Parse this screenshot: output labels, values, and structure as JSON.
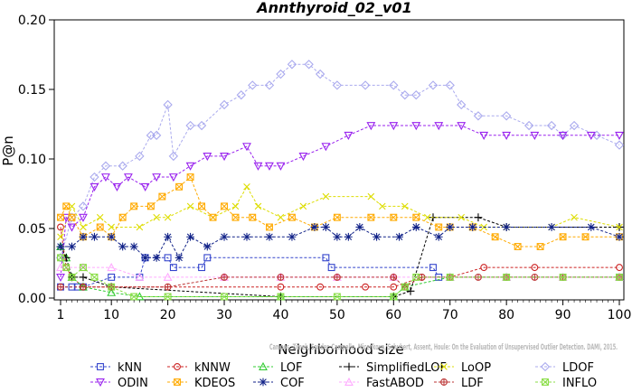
{
  "chart_data": {
    "type": "line",
    "title": "Annthyroid_02_v01",
    "xlabel": "Neighborhood size",
    "ylabel": "P@n",
    "xlim": [
      1,
      100
    ],
    "ylim": [
      0,
      0.2
    ],
    "x_ticks": [
      1,
      10,
      20,
      30,
      40,
      50,
      60,
      70,
      80,
      90,
      100
    ],
    "y_ticks": [
      0.0,
      0.05,
      0.1,
      0.15,
      0.2
    ],
    "y_tick_labels": [
      "0.00",
      "0.05",
      "0.10",
      "0.15",
      "0.20"
    ],
    "grid": false,
    "legend_position": "bottom",
    "credit": "Campos, Zimek, Sander, Campello, Micenkova, Schubert, Assent, Houle: On the Evaluation of Unsupervised Outlier Detection. DAMI, 2015.",
    "series": [
      {
        "name": "kNN",
        "color": "#3344cc",
        "marker": "square",
        "points": [
          [
            1,
            0.008
          ],
          [
            3,
            0.008
          ],
          [
            4,
            0.008
          ],
          [
            5,
            0.008
          ],
          [
            10,
            0.015
          ],
          [
            15,
            0.015
          ],
          [
            16,
            0.029
          ],
          [
            20,
            0.029
          ],
          [
            21,
            0.022
          ],
          [
            26,
            0.022
          ],
          [
            27,
            0.029
          ],
          [
            48,
            0.029
          ],
          [
            49,
            0.022
          ],
          [
            67,
            0.022
          ],
          [
            68,
            0.015
          ],
          [
            100,
            0.015
          ]
        ]
      },
      {
        "name": "kNNW",
        "color": "#cc2222",
        "marker": "circle",
        "points": [
          [
            1,
            0.051
          ],
          [
            2,
            0.022
          ],
          [
            3,
            0.015
          ],
          [
            5,
            0.008
          ],
          [
            10,
            0.008
          ],
          [
            40,
            0.008
          ],
          [
            47,
            0.008
          ],
          [
            55,
            0.008
          ],
          [
            60,
            0.008
          ],
          [
            65,
            0.015
          ],
          [
            70,
            0.015
          ],
          [
            76,
            0.022
          ],
          [
            85,
            0.022
          ],
          [
            100,
            0.022
          ]
        ]
      },
      {
        "name": "LOF",
        "color": "#33cc33",
        "marker": "triangle-up",
        "points": [
          [
            1,
            0.037
          ],
          [
            2,
            0.029
          ],
          [
            3,
            0.015
          ],
          [
            5,
            0.008
          ],
          [
            10,
            0.004
          ],
          [
            15,
            0.001
          ],
          [
            40,
            0.001
          ],
          [
            60,
            0.001
          ],
          [
            62,
            0.008
          ],
          [
            70,
            0.015
          ],
          [
            80,
            0.015
          ],
          [
            100,
            0.015
          ]
        ]
      },
      {
        "name": "SimplifiedLOF",
        "color": "#000000",
        "marker": "plus",
        "points": [
          [
            1,
            0.037
          ],
          [
            2,
            0.029
          ],
          [
            3,
            0.015
          ],
          [
            5,
            0.015
          ],
          [
            10,
            0.008
          ],
          [
            40,
            0.001
          ],
          [
            60,
            0.001
          ],
          [
            63,
            0.005
          ],
          [
            67,
            0.058
          ],
          [
            75,
            0.058
          ],
          [
            80,
            0.051
          ],
          [
            100,
            0.051
          ]
        ]
      },
      {
        "name": "LoOP",
        "color": "#dddd00",
        "marker": "x",
        "points": [
          [
            1,
            0.044
          ],
          [
            3,
            0.066
          ],
          [
            5,
            0.051
          ],
          [
            8,
            0.058
          ],
          [
            10,
            0.051
          ],
          [
            15,
            0.051
          ],
          [
            18,
            0.058
          ],
          [
            20,
            0.058
          ],
          [
            24,
            0.066
          ],
          [
            28,
            0.058
          ],
          [
            32,
            0.066
          ],
          [
            34,
            0.08
          ],
          [
            36,
            0.066
          ],
          [
            40,
            0.058
          ],
          [
            44,
            0.066
          ],
          [
            48,
            0.073
          ],
          [
            56,
            0.073
          ],
          [
            58,
            0.066
          ],
          [
            62,
            0.066
          ],
          [
            66,
            0.058
          ],
          [
            72,
            0.058
          ],
          [
            76,
            0.051
          ],
          [
            80,
            0.051
          ],
          [
            88,
            0.051
          ],
          [
            92,
            0.058
          ],
          [
            100,
            0.051
          ]
        ]
      },
      {
        "name": "LDOF",
        "color": "#aaaaee",
        "marker": "diamond",
        "points": [
          [
            1,
            0.029
          ],
          [
            3,
            0.058
          ],
          [
            5,
            0.066
          ],
          [
            7,
            0.087
          ],
          [
            9,
            0.095
          ],
          [
            12,
            0.095
          ],
          [
            15,
            0.102
          ],
          [
            17,
            0.117
          ],
          [
            18,
            0.117
          ],
          [
            20,
            0.139
          ],
          [
            21,
            0.102
          ],
          [
            24,
            0.124
          ],
          [
            26,
            0.124
          ],
          [
            30,
            0.139
          ],
          [
            33,
            0.146
          ],
          [
            35,
            0.153
          ],
          [
            38,
            0.153
          ],
          [
            40,
            0.161
          ],
          [
            42,
            0.168
          ],
          [
            45,
            0.168
          ],
          [
            47,
            0.161
          ],
          [
            50,
            0.153
          ],
          [
            55,
            0.153
          ],
          [
            60,
            0.153
          ],
          [
            62,
            0.146
          ],
          [
            64,
            0.146
          ],
          [
            67,
            0.153
          ],
          [
            70,
            0.153
          ],
          [
            72,
            0.139
          ],
          [
            75,
            0.131
          ],
          [
            80,
            0.131
          ],
          [
            84,
            0.124
          ],
          [
            88,
            0.124
          ],
          [
            90,
            0.117
          ],
          [
            92,
            0.124
          ],
          [
            96,
            0.117
          ],
          [
            100,
            0.11
          ]
        ]
      },
      {
        "name": "ODIN",
        "color": "#9922ee",
        "marker": "triangle-down",
        "points": [
          [
            1,
            0.015
          ],
          [
            2,
            0.058
          ],
          [
            3,
            0.051
          ],
          [
            5,
            0.058
          ],
          [
            7,
            0.08
          ],
          [
            9,
            0.087
          ],
          [
            11,
            0.08
          ],
          [
            13,
            0.087
          ],
          [
            16,
            0.08
          ],
          [
            18,
            0.087
          ],
          [
            21,
            0.087
          ],
          [
            24,
            0.095
          ],
          [
            27,
            0.102
          ],
          [
            30,
            0.102
          ],
          [
            34,
            0.109
          ],
          [
            36,
            0.095
          ],
          [
            38,
            0.095
          ],
          [
            40,
            0.095
          ],
          [
            44,
            0.102
          ],
          [
            48,
            0.109
          ],
          [
            52,
            0.117
          ],
          [
            56,
            0.124
          ],
          [
            60,
            0.124
          ],
          [
            64,
            0.124
          ],
          [
            68,
            0.124
          ],
          [
            72,
            0.124
          ],
          [
            76,
            0.117
          ],
          [
            80,
            0.117
          ],
          [
            85,
            0.117
          ],
          [
            90,
            0.117
          ],
          [
            95,
            0.117
          ],
          [
            100,
            0.117
          ]
        ]
      },
      {
        "name": "KDEOS",
        "color": "#ffaa00",
        "marker": "square-x",
        "points": [
          [
            1,
            0.058
          ],
          [
            2,
            0.066
          ],
          [
            3,
            0.058
          ],
          [
            5,
            0.044
          ],
          [
            8,
            0.051
          ],
          [
            10,
            0.044
          ],
          [
            12,
            0.058
          ],
          [
            14,
            0.066
          ],
          [
            17,
            0.066
          ],
          [
            19,
            0.073
          ],
          [
            22,
            0.08
          ],
          [
            24,
            0.087
          ],
          [
            26,
            0.066
          ],
          [
            28,
            0.058
          ],
          [
            30,
            0.066
          ],
          [
            32,
            0.058
          ],
          [
            35,
            0.058
          ],
          [
            38,
            0.051
          ],
          [
            42,
            0.058
          ],
          [
            46,
            0.051
          ],
          [
            50,
            0.058
          ],
          [
            56,
            0.058
          ],
          [
            60,
            0.058
          ],
          [
            64,
            0.058
          ],
          [
            68,
            0.051
          ],
          [
            70,
            0.051
          ],
          [
            74,
            0.051
          ],
          [
            78,
            0.044
          ],
          [
            82,
            0.037
          ],
          [
            86,
            0.037
          ],
          [
            90,
            0.044
          ],
          [
            94,
            0.044
          ],
          [
            100,
            0.044
          ]
        ]
      },
      {
        "name": "COF",
        "color": "#112288",
        "marker": "asterisk",
        "points": [
          [
            1,
            0.037
          ],
          [
            3,
            0.037
          ],
          [
            5,
            0.044
          ],
          [
            7,
            0.044
          ],
          [
            10,
            0.044
          ],
          [
            12,
            0.037
          ],
          [
            14,
            0.037
          ],
          [
            16,
            0.029
          ],
          [
            18,
            0.029
          ],
          [
            20,
            0.044
          ],
          [
            22,
            0.029
          ],
          [
            24,
            0.044
          ],
          [
            27,
            0.037
          ],
          [
            30,
            0.044
          ],
          [
            34,
            0.044
          ],
          [
            38,
            0.044
          ],
          [
            42,
            0.044
          ],
          [
            46,
            0.051
          ],
          [
            48,
            0.051
          ],
          [
            50,
            0.044
          ],
          [
            52,
            0.044
          ],
          [
            54,
            0.051
          ],
          [
            57,
            0.044
          ],
          [
            61,
            0.044
          ],
          [
            64,
            0.051
          ],
          [
            68,
            0.044
          ],
          [
            70,
            0.051
          ],
          [
            74,
            0.051
          ],
          [
            80,
            0.051
          ],
          [
            88,
            0.051
          ],
          [
            95,
            0.051
          ],
          [
            100,
            0.044
          ]
        ]
      },
      {
        "name": "FastABOD",
        "color": "#ffaaff",
        "marker": "triangle-up",
        "points": [
          [
            1,
            0.022
          ],
          [
            5,
            0.022
          ],
          [
            10,
            0.022
          ],
          [
            15,
            0.015
          ],
          [
            20,
            0.015
          ],
          [
            30,
            0.015
          ],
          [
            40,
            0.015
          ],
          [
            50,
            0.015
          ],
          [
            60,
            0.015
          ],
          [
            70,
            0.015
          ],
          [
            80,
            0.015
          ],
          [
            90,
            0.015
          ],
          [
            100,
            0.015
          ]
        ]
      },
      {
        "name": "LDF",
        "color": "#bb3333",
        "marker": "circle-plus",
        "points": [
          [
            1,
            0.008
          ],
          [
            5,
            0.008
          ],
          [
            10,
            0.008
          ],
          [
            20,
            0.008
          ],
          [
            30,
            0.015
          ],
          [
            40,
            0.015
          ],
          [
            50,
            0.015
          ],
          [
            60,
            0.015
          ],
          [
            62,
            0.008
          ],
          [
            65,
            0.015
          ],
          [
            70,
            0.015
          ],
          [
            75,
            0.015
          ],
          [
            80,
            0.015
          ],
          [
            85,
            0.015
          ],
          [
            90,
            0.015
          ],
          [
            100,
            0.015
          ]
        ]
      },
      {
        "name": "INFLO",
        "color": "#88dd44",
        "marker": "square-x",
        "points": [
          [
            1,
            0.029
          ],
          [
            2,
            0.022
          ],
          [
            3,
            0.015
          ],
          [
            5,
            0.022
          ],
          [
            7,
            0.015
          ],
          [
            10,
            0.008
          ],
          [
            14,
            0.001
          ],
          [
            20,
            0.001
          ],
          [
            30,
            0.001
          ],
          [
            40,
            0.001
          ],
          [
            50,
            0.001
          ],
          [
            60,
            0.001
          ],
          [
            62,
            0.008
          ],
          [
            64,
            0.015
          ],
          [
            70,
            0.015
          ],
          [
            80,
            0.015
          ],
          [
            90,
            0.015
          ],
          [
            100,
            0.015
          ]
        ]
      }
    ]
  }
}
